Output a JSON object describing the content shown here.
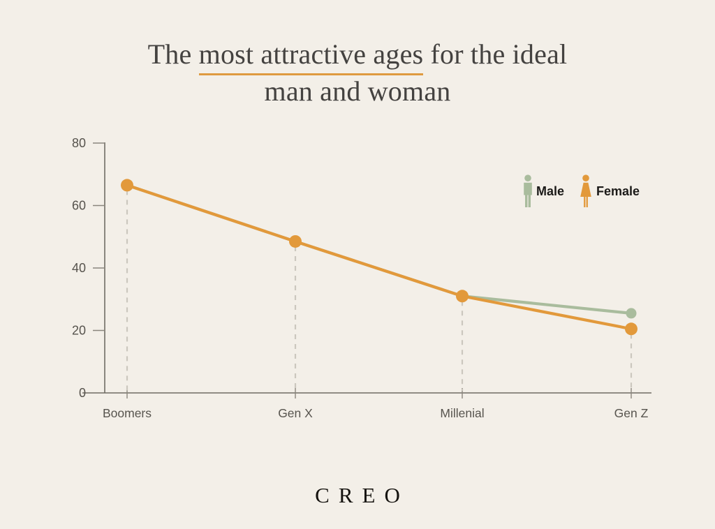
{
  "page": {
    "background": "#F3EFE8",
    "brand": "CREO"
  },
  "title": {
    "prefix": "The ",
    "highlight": "most attractive ages",
    "suffix": " for the ideal",
    "line2": "man and woman",
    "underline_color": "#DF9A3F"
  },
  "legend": {
    "male_label": "Male",
    "female_label": "Female",
    "male_color": "#A9BC9D",
    "female_color": "#E2993B"
  },
  "chart_data": {
    "type": "line",
    "title": "The most attractive ages for the ideal man and woman",
    "categories": [
      "Boomers",
      "Gen X",
      "Millenial",
      "Gen Z"
    ],
    "series": [
      {
        "name": "Male",
        "color": "#A9BC9D",
        "marker_radius": 7.5,
        "values": [
          66.5,
          48.5,
          31,
          25.5
        ]
      },
      {
        "name": "Female",
        "color": "#E2993B",
        "marker_radius": 9,
        "values": [
          66.5,
          48.5,
          31,
          20.5
        ]
      }
    ],
    "ylim": [
      0,
      80
    ],
    "yticks": [
      0,
      20,
      40,
      60,
      80
    ],
    "xlabel": "",
    "ylabel": "",
    "grid": false,
    "legend_position": "top-right",
    "marker": "circle",
    "dashed_drop_lines": true,
    "axis_color": "#6F6B63",
    "drop_line_color": "#CBC7BE"
  }
}
